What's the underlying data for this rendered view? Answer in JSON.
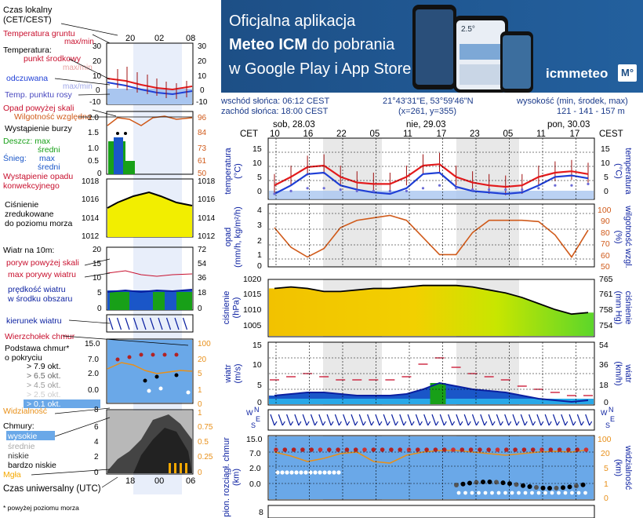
{
  "banner": {
    "line1": "Oficjalna aplikacja",
    "line2a": "Meteo ICM",
    "line2b": " do pobrania",
    "line3": "w Google Play i App Store",
    "logo": "icmmeteo",
    "logo_badge": "M°",
    "phone_value": "2.5°"
  },
  "header": {
    "sunrise": "wschód słońca: 06:12 CEST",
    "sunset": "zachód słońca: 18:00 CEST",
    "coords": "21°43'31\"E, 53°59'46\"N",
    "grid": "(x=261, y=355)",
    "alt_label": "wysokość (min, środek, max)",
    "alt_values": "121 - 141 - 157 m",
    "tz_left": "CET",
    "tz_right": "CEST",
    "days": [
      "sob, 28.03",
      "nie, 29.03",
      "pon, 30.03"
    ],
    "hours": [
      "10",
      "16",
      "22",
      "05",
      "11",
      "17",
      "23",
      "05",
      "11",
      "17"
    ]
  },
  "legend": {
    "local_time": "Czas lokalny\n(CET/CEST)",
    "local_hours": [
      "20",
      "02",
      "08"
    ],
    "utc_label": "Czas uniwersalny (UTC)",
    "utc_hours": [
      "18",
      "00",
      "06"
    ],
    "footnote": "* powyżej poziomu morza",
    "ground_temp": "Temperatura gruntu",
    "ground_sub": "max/min",
    "temp_title": "Temperatura:",
    "temp_mid": "punkt środkowy",
    "temp_maxmin": "max/min",
    "feels": "odczuwana",
    "feels_maxmin": "max/min",
    "dew": "Temp. punktu rosy",
    "temp_ticks": [
      "30",
      "20",
      "10",
      "0",
      "-10"
    ],
    "precip_over": "Opad powyżej skali",
    "humidity": "Wilgotność względna",
    "storm": "Wystąpienie burzy",
    "rain": "Deszcz: max",
    "rain_mid": "średni",
    "snow": "Śnieg:",
    "snow_max": "max",
    "snow_mid": "średni",
    "conv": "Wystąpienie opadu\nkonwekcyjnego",
    "precip_ticks": [
      "2.0",
      "1.5",
      "1.0",
      "0.5",
      "0"
    ],
    "hum_ticks": [
      "96",
      "84",
      "73",
      "61",
      "50"
    ],
    "pressure": "Ciśnienie\nzredukowane\ndo poziomu morza",
    "pres_ticks": [
      "1018",
      "1016",
      "1014",
      "1012"
    ],
    "wind_title": "Wiatr na 10m:",
    "gust_over": "poryw powyżej skali",
    "gust_max": "max porywy wiatru",
    "wind_speed": "prędkość wiatru\nw środku obszaru",
    "wind_ticks_ms": [
      "20",
      "15",
      "10",
      "5",
      "0"
    ],
    "wind_ticks_kmh": [
      "72",
      "54",
      "36",
      "18",
      "0"
    ],
    "wind_dir": "kierunek wiatru",
    "cloud_top": "Wierzchołek chmur",
    "cloud_base": "Podstawa chmur*\no pokryciu",
    "cb_items": [
      "> 7.9 okt.",
      "> 6.5 okt.",
      "> 4.5 okt.",
      "> 2.5 okt.",
      "> 0.1 okt."
    ],
    "cb_ticks": [
      "15.0",
      "7.0",
      "2.0",
      "0.0"
    ],
    "vis_ticks": [
      "100",
      "20",
      "5",
      "1",
      "0"
    ],
    "visibility": "Widzialność",
    "clouds": "Chmury:",
    "cl_high": "wysokie",
    "cl_mid": "średnie",
    "cl_low": "niskie",
    "cl_vlow": "bardzo niskie",
    "fog": "Mgła",
    "cl_ticks": [
      "8",
      "6",
      "4",
      "2",
      "0"
    ],
    "cl_right_ticks": [
      "1",
      "0.75",
      "0.5",
      "0.25",
      "0"
    ]
  },
  "panels": {
    "temp_label": "temperatura\n(°C)",
    "temp_label_r": "temperatura\n(°C)",
    "temp_ticks": [
      "15",
      "10",
      "5",
      "0"
    ],
    "precip_label": "opad\n(mm/h, kg/m²/h)",
    "hum_label": "wilgotność wzgl.\n(%)",
    "precip_ticks": [
      "4",
      "3",
      "2",
      "1",
      "0"
    ],
    "hum_ticks": [
      "100",
      "90",
      "80",
      "70",
      "60",
      "50"
    ],
    "pres_label": "ciśnienie\n(hPa)",
    "pres_label_r": "ciśnienie\n(mm Hg)",
    "pres_ticks": [
      "1020",
      "1015",
      "1010",
      "1005"
    ],
    "pres_mm_ticks": [
      "765",
      "761",
      "758",
      "754"
    ],
    "wind_label": "wiatr\n(m/s)",
    "wind_label_r": "wiatr\n(km/h)",
    "wind_ticks": [
      "15",
      "10",
      "5",
      "0"
    ],
    "wind_kmh_ticks": [
      "54",
      "36",
      "18",
      "0"
    ],
    "cloud_label": "pion. rozciągł. chmur\n(km)",
    "vis_label": "widzialność\n(km)",
    "cloud_ticks": [
      "15.0",
      "7.0",
      "2.0",
      "0.0"
    ],
    "vis_ticks": [
      "100",
      "20",
      "5",
      "1",
      "0"
    ],
    "bottom_tick": "8"
  },
  "chart_data": [
    {
      "type": "line",
      "title": "temperatura (°C)",
      "ylim": [
        -2,
        15
      ],
      "x": [
        "10",
        "13",
        "16",
        "19",
        "22",
        "01",
        "05",
        "08",
        "11",
        "14",
        "17",
        "20",
        "23",
        "02",
        "05",
        "08",
        "11",
        "14",
        "17",
        "20"
      ],
      "series": [
        {
          "name": "punkt środkowy",
          "values": [
            3,
            6,
            9.5,
            10,
            6,
            4,
            3.5,
            3.5,
            6,
            10,
            10.5,
            6,
            4,
            3,
            2.5,
            3,
            6,
            7.5,
            8,
            7
          ]
        },
        {
          "name": "odczuwana",
          "values": [
            0,
            3,
            7,
            7.5,
            3,
            1.5,
            0.5,
            0,
            2,
            7,
            7.5,
            2.5,
            1,
            0.5,
            0,
            0.5,
            3,
            6,
            6.5,
            5.5
          ]
        },
        {
          "name": "Temp. punktu rosy",
          "values": [
            0,
            1,
            2,
            2,
            1.5,
            1,
            1,
            1,
            1,
            2,
            3,
            2,
            1.5,
            1.5,
            1.5,
            1.5,
            2,
            3,
            3,
            3.5
          ]
        }
      ]
    },
    {
      "type": "line",
      "title": "wilgotność wzgl. (%)",
      "ylim": [
        50,
        100
      ],
      "x": [
        "10",
        "13",
        "16",
        "19",
        "22",
        "01",
        "05",
        "08",
        "11",
        "14",
        "17",
        "20",
        "23",
        "02",
        "05",
        "08",
        "11",
        "14",
        "17",
        "20"
      ],
      "series": [
        {
          "name": "wilgotność",
          "values": [
            82,
            66,
            58,
            65,
            82,
            88,
            90,
            92,
            88,
            74,
            60,
            60,
            78,
            88,
            88,
            88,
            87,
            76,
            58,
            80
          ]
        }
      ]
    },
    {
      "type": "line",
      "title": "ciśnienie (hPa)",
      "ylim": [
        1002,
        1021
      ],
      "x": [
        "10",
        "13",
        "16",
        "19",
        "22",
        "01",
        "05",
        "08",
        "11",
        "14",
        "17",
        "20",
        "23",
        "02",
        "05",
        "08",
        "11",
        "14",
        "17",
        "20"
      ],
      "series": [
        {
          "name": "ciśnienie",
          "values": [
            1018,
            1018.5,
            1018,
            1017,
            1017,
            1017.5,
            1018,
            1018,
            1018.5,
            1019,
            1019,
            1019,
            1018.5,
            1017.5,
            1016.5,
            1015,
            1013,
            1011,
            1009.5,
            1010
          ]
        }
      ]
    },
    {
      "type": "line",
      "title": "wiatr (m/s)",
      "ylim": [
        0,
        20
      ],
      "x": [
        "10",
        "13",
        "16",
        "19",
        "22",
        "01",
        "05",
        "08",
        "11",
        "14",
        "17",
        "20",
        "23",
        "02",
        "05",
        "08",
        "11",
        "14",
        "17",
        "20"
      ],
      "series": [
        {
          "name": "prędkość wiatru",
          "values": [
            3,
            3.5,
            4,
            4,
            3.5,
            3,
            3,
            3,
            3.5,
            5,
            7,
            6,
            5,
            4.5,
            4,
            3,
            2,
            1.5,
            1,
            1.5
          ]
        },
        {
          "name": "max porywy wiatru",
          "values": [
            8,
            9,
            10,
            9,
            8,
            8,
            8,
            8,
            9,
            13,
            15,
            12,
            10,
            9,
            8,
            6,
            5,
            4,
            3,
            3
          ]
        }
      ]
    }
  ],
  "colors": {
    "temp": "#e31a1c",
    "feels": "#1f3fd6",
    "dew": "#6b6bd6",
    "humidity": "#d05a1a",
    "pres_line": "#000000",
    "wind_line": "#0a1fa0",
    "gust": "#c8102e",
    "cloud_bg": "#6aa8e8",
    "night": "#d9d9d9",
    "banner": "#1d4f86"
  }
}
